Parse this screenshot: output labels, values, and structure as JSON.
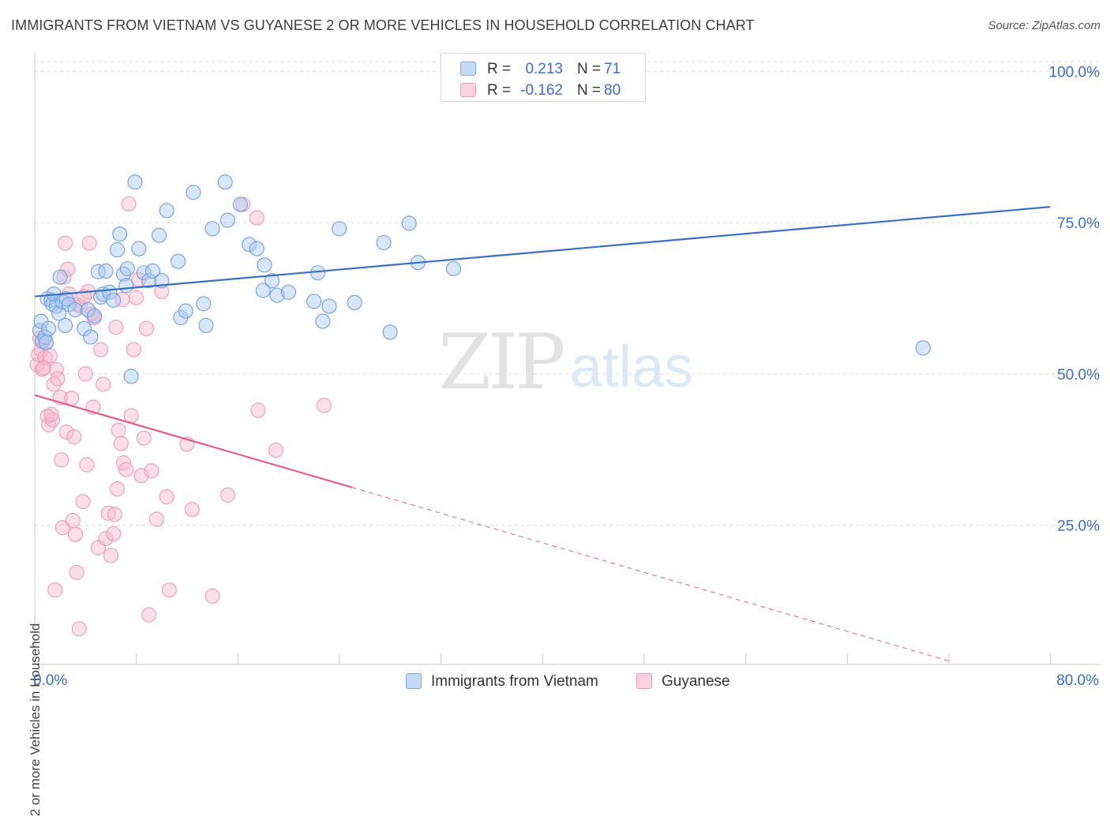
{
  "header": {
    "title": "IMMIGRANTS FROM VIETNAM VS GUYANESE 2 OR MORE VEHICLES IN HOUSEHOLD CORRELATION CHART",
    "source": "Source: ZipAtlas.com"
  },
  "watermark": {
    "zip": "ZIP",
    "atlas": "atlas"
  },
  "legend_top": {
    "rows": [
      {
        "r_label": "R =",
        "r_value": "0.213",
        "n_label": "N =",
        "n_value": "71",
        "color": "#a8c8f0"
      },
      {
        "r_label": "R =",
        "r_value": "-0.162",
        "n_label": "N =",
        "n_value": "80",
        "color": "#f7b8cc"
      }
    ]
  },
  "legend_bottom": {
    "items": [
      {
        "label": "Immigrants from Vietnam",
        "color": "#a8c8f0"
      },
      {
        "label": "Guyanese",
        "color": "#f7b8cc"
      }
    ]
  },
  "chart_data": {
    "type": "scatter",
    "title": "IMMIGRANTS FROM VIETNAM VS GUYANESE 2 OR MORE VEHICLES IN HOUSEHOLD CORRELATION CHART",
    "xlabel": "",
    "ylabel": "2 or more Vehicles in Household",
    "xlim": [
      0,
      80
    ],
    "ylim": [
      2,
      102
    ],
    "x_tick_labels": [
      "0.0%",
      "80.0%"
    ],
    "y_ticks": [
      25,
      50,
      75,
      100
    ],
    "y_tick_labels": [
      "25.0%",
      "50.0%",
      "75.0%",
      "100.0%"
    ],
    "grid": true,
    "legend": "top-center",
    "colors": {
      "blue": "#3a6fc4",
      "blue_fill": "#a8c8f0",
      "pink": "#e0608c",
      "pink_fill": "#f7b8cc",
      "tick_text": "#3a6fc4"
    },
    "series": [
      {
        "name": "Immigrants from Vietnam",
        "r": 0.213,
        "n": 71,
        "trend": {
          "x0": 0,
          "y0": 62.8,
          "x1": 80,
          "y1": 77.6,
          "solid_until": 80
        },
        "points": [
          [
            0.4,
            57.2
          ],
          [
            0.5,
            58.7
          ],
          [
            0.6,
            55.4
          ],
          [
            0.8,
            56.1
          ],
          [
            0.9,
            55.2
          ],
          [
            1.0,
            62.4
          ],
          [
            1.1,
            57.5
          ],
          [
            1.3,
            62.2
          ],
          [
            1.4,
            61.5
          ],
          [
            1.5,
            63.2
          ],
          [
            1.7,
            61.2
          ],
          [
            1.9,
            60.0
          ],
          [
            2.0,
            66.0
          ],
          [
            2.2,
            61.9
          ],
          [
            2.4,
            58.0
          ],
          [
            2.5,
            62.4
          ],
          [
            2.7,
            61.5
          ],
          [
            3.2,
            60.6
          ],
          [
            3.9,
            57.5
          ],
          [
            4.2,
            60.6
          ],
          [
            4.4,
            56.1
          ],
          [
            4.7,
            59.6
          ],
          [
            5.0,
            66.9
          ],
          [
            5.2,
            62.7
          ],
          [
            5.4,
            63.2
          ],
          [
            5.6,
            67.0
          ],
          [
            5.9,
            63.5
          ],
          [
            6.2,
            62.2
          ],
          [
            6.5,
            70.5
          ],
          [
            6.7,
            73.1
          ],
          [
            7.0,
            66.5
          ],
          [
            7.2,
            64.6
          ],
          [
            7.3,
            67.4
          ],
          [
            7.6,
            49.6
          ],
          [
            7.9,
            81.7
          ],
          [
            8.2,
            70.7
          ],
          [
            8.6,
            66.7
          ],
          [
            9.0,
            65.4
          ],
          [
            9.3,
            67.0
          ],
          [
            9.8,
            72.9
          ],
          [
            10.0,
            65.4
          ],
          [
            10.4,
            77.0
          ],
          [
            11.3,
            68.6
          ],
          [
            11.5,
            59.3
          ],
          [
            11.9,
            60.4
          ],
          [
            12.5,
            80.0
          ],
          [
            13.3,
            61.6
          ],
          [
            13.5,
            58.0
          ],
          [
            14.0,
            74.0
          ],
          [
            15.0,
            81.7
          ],
          [
            15.2,
            75.4
          ],
          [
            16.2,
            78.0
          ],
          [
            16.9,
            71.4
          ],
          [
            17.5,
            70.7
          ],
          [
            18.0,
            63.8
          ],
          [
            18.1,
            68.0
          ],
          [
            18.7,
            65.4
          ],
          [
            19.1,
            63.0
          ],
          [
            20.0,
            63.5
          ],
          [
            22.0,
            62.0
          ],
          [
            22.3,
            66.7
          ],
          [
            22.7,
            58.7
          ],
          [
            23.2,
            61.2
          ],
          [
            24.0,
            74.0
          ],
          [
            25.2,
            61.8
          ],
          [
            27.5,
            71.7
          ],
          [
            28.0,
            56.9
          ],
          [
            29.5,
            74.9
          ],
          [
            30.2,
            68.4
          ],
          [
            70.0,
            54.3
          ],
          [
            33.0,
            67.4
          ]
        ]
      },
      {
        "name": "Guyanese",
        "r": -0.162,
        "n": 80,
        "trend": {
          "x0": 0,
          "y0": 46.5,
          "x1": 72,
          "y1": 2.6,
          "solid_until": 25
        },
        "points": [
          [
            0.2,
            51.5
          ],
          [
            0.3,
            53.2
          ],
          [
            0.4,
            55.9
          ],
          [
            0.5,
            54.0
          ],
          [
            0.6,
            50.8
          ],
          [
            0.8,
            52.7
          ],
          [
            0.9,
            55.2
          ],
          [
            1.0,
            43.0
          ],
          [
            1.1,
            41.6
          ],
          [
            1.2,
            53.0
          ],
          [
            1.4,
            42.4
          ],
          [
            1.5,
            48.3
          ],
          [
            1.6,
            14.3
          ],
          [
            1.7,
            50.7
          ],
          [
            1.8,
            49.2
          ],
          [
            2.0,
            46.1
          ],
          [
            2.1,
            35.8
          ],
          [
            2.2,
            24.6
          ],
          [
            2.3,
            66.0
          ],
          [
            2.4,
            71.6
          ],
          [
            2.5,
            40.4
          ],
          [
            2.7,
            63.2
          ],
          [
            2.9,
            46.0
          ],
          [
            3.0,
            25.8
          ],
          [
            3.1,
            39.6
          ],
          [
            3.2,
            23.5
          ],
          [
            3.3,
            17.2
          ],
          [
            3.4,
            61.4
          ],
          [
            3.5,
            7.9
          ],
          [
            3.6,
            61.2
          ],
          [
            3.8,
            28.9
          ],
          [
            4.0,
            50.0
          ],
          [
            4.1,
            35.0
          ],
          [
            4.2,
            63.6
          ],
          [
            4.3,
            71.6
          ],
          [
            4.5,
            59.9
          ],
          [
            4.6,
            44.5
          ],
          [
            4.7,
            59.3
          ],
          [
            5.0,
            21.3
          ],
          [
            5.2,
            54.0
          ],
          [
            5.4,
            48.3
          ],
          [
            5.6,
            22.8
          ],
          [
            5.8,
            27.0
          ],
          [
            6.0,
            20.0
          ],
          [
            6.2,
            23.6
          ],
          [
            6.3,
            26.8
          ],
          [
            6.4,
            57.7
          ],
          [
            6.5,
            31.0
          ],
          [
            6.6,
            40.7
          ],
          [
            6.8,
            38.5
          ],
          [
            6.9,
            62.3
          ],
          [
            7.0,
            35.3
          ],
          [
            7.2,
            34.2
          ],
          [
            7.4,
            78.1
          ],
          [
            7.6,
            43.1
          ],
          [
            7.8,
            54.0
          ],
          [
            8.0,
            62.6
          ],
          [
            8.2,
            65.6
          ],
          [
            8.4,
            33.2
          ],
          [
            8.6,
            39.4
          ],
          [
            8.8,
            57.5
          ],
          [
            9.0,
            10.2
          ],
          [
            9.2,
            34.0
          ],
          [
            9.6,
            26.0
          ],
          [
            10.0,
            63.6
          ],
          [
            10.4,
            29.7
          ],
          [
            10.6,
            14.3
          ],
          [
            12.0,
            38.4
          ],
          [
            12.4,
            27.6
          ],
          [
            14.0,
            13.3
          ],
          [
            15.2,
            30.0
          ],
          [
            16.4,
            78.0
          ],
          [
            17.5,
            75.8
          ],
          [
            17.6,
            44.0
          ],
          [
            19.0,
            37.4
          ],
          [
            22.8,
            44.8
          ],
          [
            2.6,
            67.3
          ],
          [
            1.3,
            43.3
          ],
          [
            0.7,
            51.0
          ],
          [
            3.9,
            62.8
          ]
        ]
      }
    ]
  }
}
